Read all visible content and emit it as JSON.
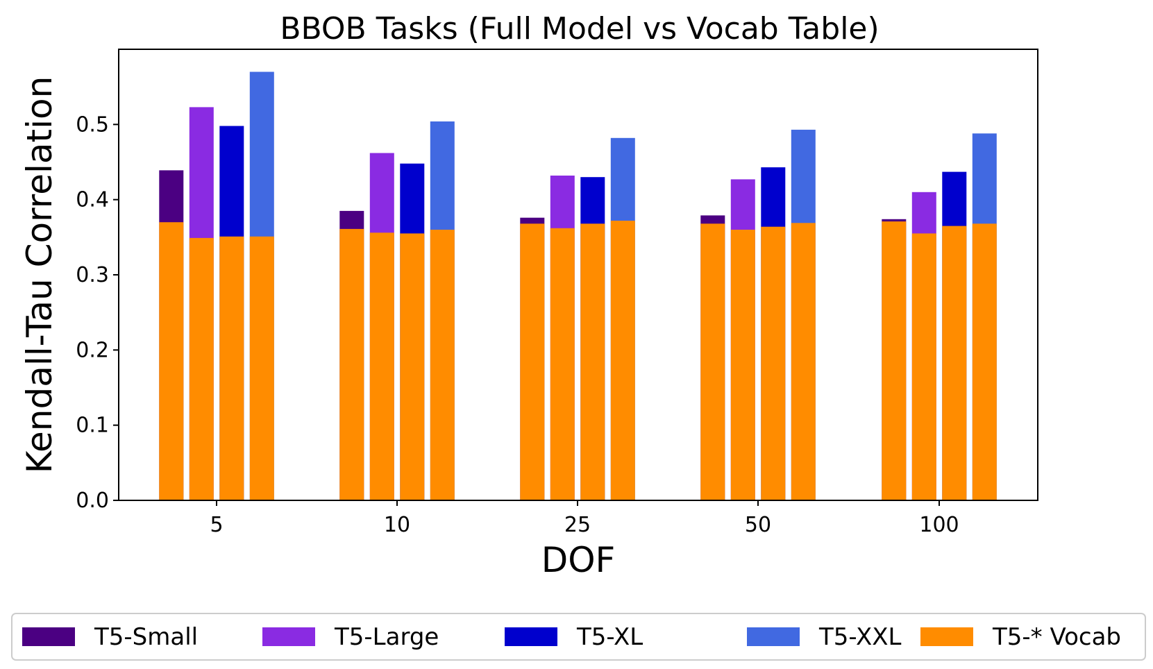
{
  "chart_data": {
    "type": "bar",
    "stacking": "overlay",
    "title": "BBOB Tasks (Full Model vs Vocab Table)",
    "xlabel": "DOF",
    "ylabel": "Kendall-Tau Correlation",
    "categories": [
      "5",
      "10",
      "25",
      "50",
      "100"
    ],
    "ylim": [
      0,
      0.6
    ],
    "yticks": [
      "0.0",
      "0.1",
      "0.2",
      "0.3",
      "0.4",
      "0.5"
    ],
    "grid": false,
    "legend_position": "bottom",
    "series": [
      {
        "name": "T5-Small",
        "color": "#4b0082",
        "values": [
          0.439,
          0.385,
          0.376,
          0.379,
          0.374
        ]
      },
      {
        "name": "T5-Large",
        "color": "#8a2be2",
        "values": [
          0.523,
          0.462,
          0.432,
          0.427,
          0.41
        ]
      },
      {
        "name": "T5-XL",
        "color": "#0000cd",
        "values": [
          0.498,
          0.448,
          0.43,
          0.443,
          0.437
        ]
      },
      {
        "name": "T5-XXL",
        "color": "#4169e1",
        "values": [
          0.57,
          0.504,
          0.482,
          0.493,
          0.488
        ]
      }
    ],
    "vocab_series": {
      "name": "T5-* Vocab",
      "color": "#ff8c00",
      "values": [
        [
          0.37,
          0.349,
          0.351,
          0.351
        ],
        [
          0.361,
          0.356,
          0.355,
          0.36
        ],
        [
          0.368,
          0.362,
          0.368,
          0.372
        ],
        [
          0.368,
          0.36,
          0.364,
          0.369
        ],
        [
          0.371,
          0.355,
          0.365,
          0.368
        ]
      ]
    }
  }
}
